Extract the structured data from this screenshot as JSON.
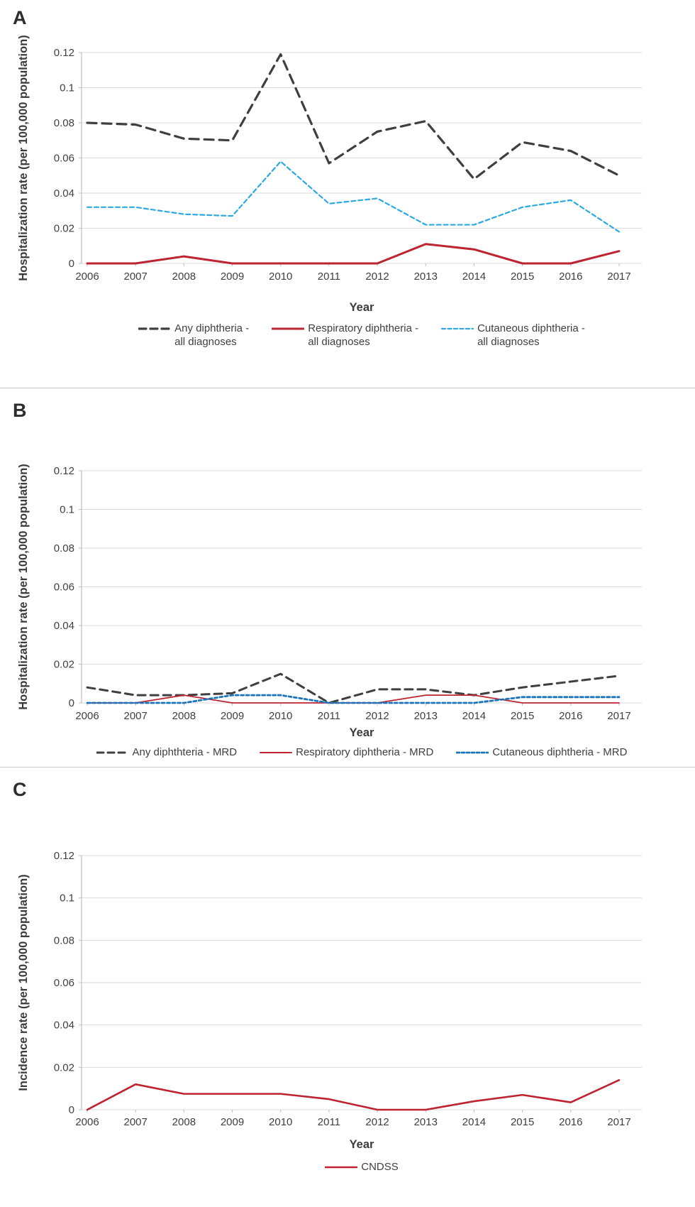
{
  "figure_colors": {
    "dark_line": "#3f3f3f",
    "red_line": "#be2430",
    "light_blue_line": "#2da9e1",
    "medium_blue_line": "#1c75bb",
    "gridline": "#dbdbdb",
    "axis": "#bdbdbd",
    "text": "#404040"
  },
  "chart_data": [
    {
      "id": "panel-a",
      "panel_label": "A",
      "type": "line",
      "title": "",
      "xlabel": "Year",
      "ylabel": "Hospitalization rate (per 100,000 population)",
      "x": [
        2006,
        2007,
        2008,
        2009,
        2010,
        2011,
        2012,
        2013,
        2014,
        2015,
        2016,
        2017
      ],
      "ylim": [
        0,
        0.12
      ],
      "yticks": [
        0,
        0.02,
        0.04,
        0.06,
        0.08,
        0.1,
        0.12
      ],
      "grid": true,
      "legend_position": "bottom",
      "series": [
        {
          "id": "any-diphtheria-all-diagnoses",
          "name": "Any diphtheria - all diagnoses",
          "legend_lines": [
            "Any diphtheria -",
            "all diagnoses"
          ],
          "color": "#3f3f3f",
          "width": 3.2,
          "dash": "13 8",
          "legend_dash": "10 6 10 6 10 6 2.5 99",
          "values": [
            0.08,
            0.079,
            0.071,
            0.07,
            0.119,
            0.057,
            0.075,
            0.081,
            0.048,
            0.069,
            0.064,
            0.05
          ]
        },
        {
          "id": "respiratory-diphtheria-all-diagnoses",
          "name": "Respiratory diphtheria - all diagnoses",
          "legend_lines": [
            "Respiratory diphtheria -",
            "all diagnoses"
          ],
          "color": "#be2430",
          "width": 3,
          "dash": "",
          "legend_dash": "",
          "values": [
            0,
            0,
            0.004,
            0,
            0,
            0,
            0,
            0.011,
            0.008,
            0,
            0,
            0.007
          ]
        },
        {
          "id": "cutaneous-diphtheria-all-diagnoses",
          "name": "Cutaneous diphtheria - all diagnoses",
          "legend_lines": [
            "Cutaneous diphtheria -",
            "all diagnoses"
          ],
          "color": "#2da9e1",
          "width": 2.2,
          "dash": "6 4",
          "legend_dash": "5 3.5",
          "values": [
            0.032,
            0.032,
            0.028,
            0.027,
            0.058,
            0.034,
            0.037,
            0.022,
            0.022,
            0.032,
            0.036,
            0.018
          ]
        }
      ]
    },
    {
      "id": "panel-b",
      "panel_label": "B",
      "type": "line",
      "title": "",
      "xlabel": "Year",
      "ylabel": "Hospitalization rate (per 100,000 population)",
      "x": [
        2006,
        2007,
        2008,
        2009,
        2010,
        2011,
        2012,
        2013,
        2014,
        2015,
        2016,
        2017
      ],
      "ylim": [
        0,
        0.12
      ],
      "yticks": [
        0,
        0.02,
        0.04,
        0.06,
        0.08,
        0.1,
        0.12
      ],
      "grid": true,
      "legend_position": "bottom",
      "series": [
        {
          "id": "any-diphtheria-mrd",
          "name": "Any diphthteria - MRD",
          "legend_lines": [
            "Any diphthteria - MRD"
          ],
          "color": "#3f3f3f",
          "width": 3,
          "dash": "11 7",
          "legend_dash": "9 6 9 6 9 6 2.5 99",
          "values": [
            0.008,
            0.004,
            0.004,
            0.005,
            0.015,
            0,
            0.007,
            0.007,
            0.004,
            0.008,
            0.011,
            0.014
          ]
        },
        {
          "id": "respiratory-diphtheria-mrd",
          "name": "Respiratory diphtheria - MRD",
          "legend_lines": [
            "Respiratory diphtheria - MRD"
          ],
          "color": "#be2430",
          "width": 1.8,
          "dash": "",
          "legend_dash": "",
          "values": [
            0,
            0,
            0.004,
            0,
            0,
            0,
            0,
            0.004,
            0.004,
            0,
            0,
            0
          ]
        },
        {
          "id": "cutaneous-diphtheria-mrd",
          "name": "Cutaneous diphtheria - MRD",
          "legend_lines": [
            "Cutaneous diphtheria - MRD"
          ],
          "color": "#1c75bb",
          "width": 2.8,
          "dash": "4 3.5",
          "legend_dash": "4 3",
          "values": [
            0,
            0,
            0,
            0.004,
            0.004,
            0,
            0,
            0,
            0,
            0.003,
            0.003,
            0.003
          ]
        }
      ]
    },
    {
      "id": "panel-c",
      "panel_label": "C",
      "type": "line",
      "title": "",
      "xlabel": "Year",
      "ylabel": "Incidence rate (per 100,000 population)",
      "x": [
        2006,
        2007,
        2008,
        2009,
        2010,
        2011,
        2012,
        2013,
        2014,
        2015,
        2016,
        2017
      ],
      "ylim": [
        0,
        0.12
      ],
      "yticks": [
        0,
        0.02,
        0.04,
        0.06,
        0.08,
        0.1,
        0.12
      ],
      "grid": true,
      "legend_position": "bottom",
      "series": [
        {
          "id": "cndss",
          "name": "CNDSS",
          "legend_lines": [
            "CNDSS"
          ],
          "color": "#be2430",
          "width": 2.6,
          "dash": "",
          "legend_dash": "",
          "values": [
            0,
            0.012,
            0.0075,
            0.0075,
            0.0075,
            0.005,
            0,
            0,
            0.004,
            0.007,
            0.0035,
            0.014
          ]
        }
      ]
    }
  ]
}
